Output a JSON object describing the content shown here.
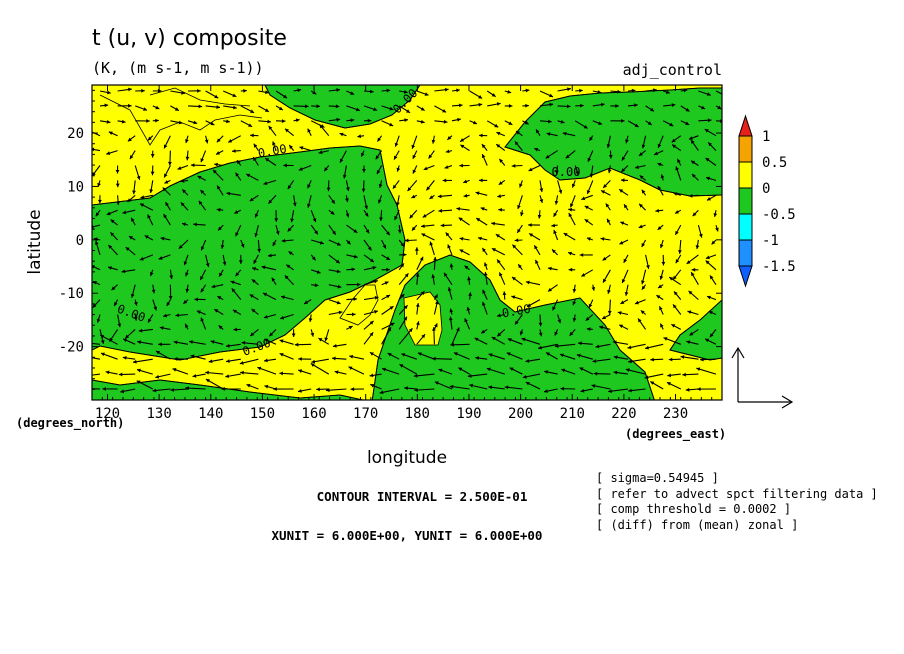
{
  "header": {
    "title": "t (u, v) composite",
    "subtitle": "(K, (m s-1, m s-1))",
    "run_label": "adj_control"
  },
  "chart_data": {
    "type": "heatmap",
    "subtype": "filled contour map with vector overlay",
    "title": "t (u, v) composite",
    "units": "(K, (m s-1, m s-1))",
    "xlabel": "longitude",
    "ylabel": "latitude",
    "x_unit_label": "(degrees_east)",
    "y_unit_label": "(degrees_north)",
    "xlim": [
      117,
      239
    ],
    "ylim": [
      -30,
      29
    ],
    "xticks": [
      120,
      130,
      140,
      150,
      160,
      170,
      180,
      190,
      200,
      210,
      220,
      230
    ],
    "yticks": [
      20,
      10,
      0,
      -10,
      -20
    ],
    "colorbar": {
      "labels": [
        "1",
        "0.5",
        "0",
        "-0.5",
        "-1",
        "-1.5"
      ],
      "bands": [
        {
          "range": "> 1",
          "color": "#e8201a"
        },
        {
          "range": "0.5 to 1",
          "color": "#f5a300"
        },
        {
          "range": "0 to 0.5",
          "color": "#ffff00"
        },
        {
          "range": "-0.5 to 0",
          "color": "#1ec81e"
        },
        {
          "range": "-1 to -0.5",
          "color": "#00ffff"
        },
        {
          "range": "-1.5 to -1",
          "color": "#1e90ff"
        },
        {
          "range": "< -1.5",
          "color": "#1060ff"
        }
      ]
    },
    "contour_label": "0.00",
    "fields_shown": {
      "positive": "#ffff00",
      "negative": "#1ec81e"
    },
    "contour_interval_text": "CONTOUR INTERVAL = 2.500E-01",
    "vector_unit_text": "XUNIT = 6.000E+00, YUNIT = 6.000E+00",
    "notes": [
      "[ sigma=0.54945 ]",
      "[ refer to advect spct filtering data ]",
      "[ comp threshold = 0.0002 ]",
      "[ (diff) from (mean) zonal ]"
    ],
    "grid": false
  },
  "colors": {
    "positive": "#ffff00",
    "negative": "#1ec81e",
    "frame": "#000000"
  }
}
